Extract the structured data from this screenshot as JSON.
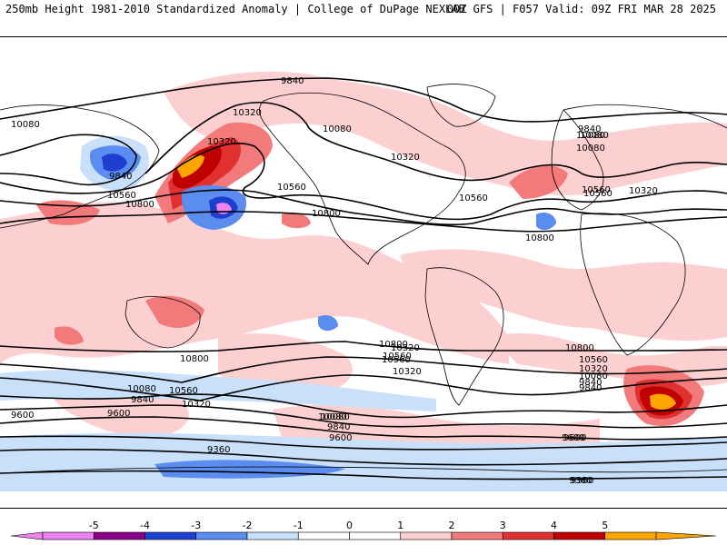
{
  "header": {
    "title": "250mb Height 1981-2010 Standardized Anomaly | College of DuPage NEXLAB",
    "run": "00Z GFS | F057 Valid: 09Z FRI MAR 28 2025"
  },
  "map": {
    "contour_labels": [
      "9840",
      "10080",
      "10320",
      "10560",
      "10800",
      "9360",
      "9600",
      "10320",
      "10560",
      "10800",
      "10080",
      "9840",
      "10560",
      "10800",
      "10320",
      "10080",
      "10560",
      "10080",
      "9840",
      "9600",
      "10800",
      "10560",
      "10320",
      "10080",
      "9840",
      "9600",
      "9360",
      "9840",
      "10080",
      "10320",
      "10560",
      "10800",
      "10560",
      "10320",
      "10080",
      "9840",
      "9600",
      "10080",
      "10320",
      "10560",
      "10800",
      "10560",
      "10320",
      "10080",
      "9840",
      "9600",
      "9360"
    ],
    "colors": {
      "neg5": "#ee82ee",
      "neg4": "#8b008b",
      "neg3": "#1e3ed0",
      "neg2": "#5b8cf0",
      "neg1": "#c8e0fa",
      "pos1": "#fcd0d0",
      "pos2": "#f27a7a",
      "pos3": "#e03030",
      "pos4": "#c00000",
      "pos5": "#ffa500",
      "neutral": "#ffffff"
    }
  },
  "colorbar": {
    "ticks": [
      "-5",
      "-4",
      "-3",
      "-2",
      "-1",
      "0",
      "1",
      "2",
      "3",
      "4",
      "5"
    ],
    "colors": [
      "#ee82ee",
      "#8b008b",
      "#1e3ed0",
      "#5b8cf0",
      "#c8e0fa",
      "#ffffff",
      "#ffffff",
      "#fcd0d0",
      "#f27a7a",
      "#e03030",
      "#c00000",
      "#ffa500"
    ]
  }
}
